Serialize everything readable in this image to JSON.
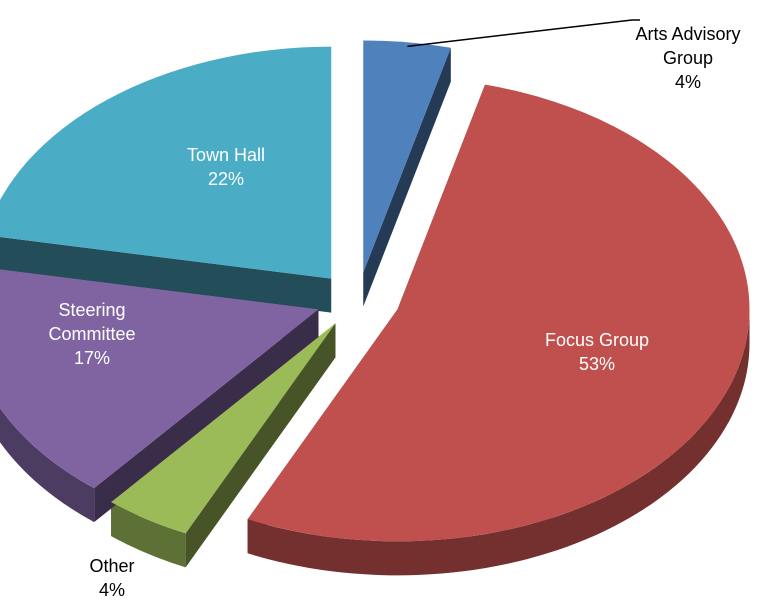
{
  "chart_data": {
    "type": "pie",
    "categories": [
      "Arts Advisory Group",
      "Focus Group",
      "Other",
      "Steering Committee",
      "Town Hall"
    ],
    "values": [
      4,
      53,
      4,
      17,
      22
    ],
    "value_labels": [
      "4%",
      "53%",
      "4%",
      "17%",
      "22%"
    ],
    "colors": [
      "#4f81bd",
      "#c0504d",
      "#9bbb59",
      "#8064a2",
      "#4bacc6"
    ]
  }
}
